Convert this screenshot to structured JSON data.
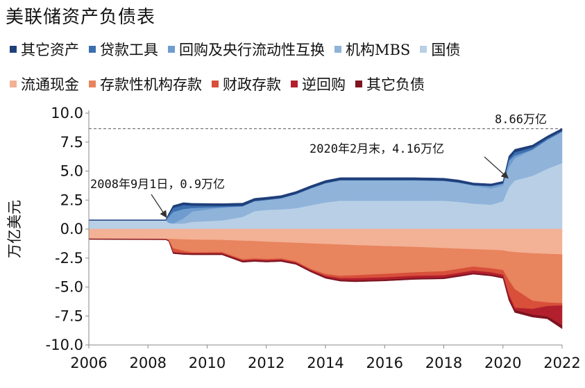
{
  "chart_data": {
    "type": "area",
    "title": "美联储资产负债表",
    "ylabel": "万亿美元",
    "xlabel": "",
    "ylim": [
      -10.0,
      10.0
    ],
    "xlim": [
      2006,
      2022
    ],
    "grid": false,
    "legend_position": "top",
    "x_ticks": [
      2006,
      2008,
      2010,
      2012,
      2014,
      2016,
      2018,
      2020,
      2022
    ],
    "y_ticks": [
      10.0,
      7.5,
      5.0,
      2.5,
      0.0,
      -2.5,
      -5.0,
      -7.5,
      -10.0
    ],
    "reference_line": {
      "y": 8.66,
      "label": "8.66万亿",
      "style": "dashed"
    },
    "annotations": [
      {
        "text": "2008年9月1日，0.9万亿",
        "x": 2008.67,
        "y": 0.9
      },
      {
        "text": "2020年2月末，4.16万亿",
        "x": 2020.17,
        "y": 4.16
      }
    ],
    "x": [
      2006,
      2008.6,
      2008.7,
      2008.85,
      2009.2,
      2009.5,
      2010.5,
      2011.2,
      2011.6,
      2012,
      2012.5,
      2013,
      2013.5,
      2014,
      2014.5,
      2015,
      2016,
      2017,
      2018,
      2018.5,
      2019,
      2019.6,
      2020.0,
      2020.2,
      2020.4,
      2021,
      2021.5,
      2022
    ],
    "assets": [
      {
        "name": "国债",
        "color": "#b8cfe6",
        "values": [
          0.75,
          0.75,
          0.55,
          0.48,
          0.48,
          0.62,
          0.75,
          1.05,
          1.55,
          1.65,
          1.7,
          1.8,
          2.05,
          2.3,
          2.45,
          2.45,
          2.45,
          2.45,
          2.45,
          2.35,
          2.2,
          2.1,
          2.4,
          3.6,
          4.2,
          4.6,
          5.2,
          5.7
        ]
      },
      {
        "name": "机构MBS",
        "color": "#8fb3d9",
        "values": [
          0.0,
          0.0,
          0.0,
          0.0,
          0.45,
          0.9,
          1.1,
          0.9,
          0.85,
          0.85,
          0.95,
          1.2,
          1.45,
          1.65,
          1.75,
          1.75,
          1.75,
          1.75,
          1.7,
          1.65,
          1.55,
          1.4,
          1.38,
          1.75,
          1.9,
          2.25,
          2.5,
          2.7
        ]
      },
      {
        "name": "回购及央行流动性互换",
        "color": "#6f9ccf",
        "values": [
          0.0,
          0.0,
          0.5,
          1.0,
          0.8,
          0.3,
          0.05,
          0.02,
          0.01,
          0.01,
          0.01,
          0.01,
          0.01,
          0.01,
          0.01,
          0.01,
          0.01,
          0.01,
          0.01,
          0.01,
          0.02,
          0.2,
          0.15,
          0.55,
          0.25,
          0.02,
          0.01,
          0.01
        ]
      },
      {
        "name": "贷款工具",
        "color": "#3c6fb0",
        "values": [
          0.0,
          0.0,
          0.15,
          0.35,
          0.35,
          0.2,
          0.1,
          0.05,
          0.04,
          0.04,
          0.03,
          0.03,
          0.03,
          0.03,
          0.03,
          0.03,
          0.03,
          0.03,
          0.03,
          0.03,
          0.03,
          0.03,
          0.03,
          0.15,
          0.28,
          0.18,
          0.12,
          0.08
        ]
      },
      {
        "name": "其它资产",
        "color": "#1f3f7a",
        "values": [
          0.05,
          0.05,
          0.15,
          0.2,
          0.2,
          0.2,
          0.2,
          0.22,
          0.2,
          0.2,
          0.2,
          0.2,
          0.2,
          0.2,
          0.2,
          0.2,
          0.2,
          0.2,
          0.2,
          0.2,
          0.18,
          0.17,
          0.16,
          0.25,
          0.25,
          0.2,
          0.2,
          0.2
        ]
      }
    ],
    "liabilities": [
      {
        "name": "流通现金",
        "color": "#f3b195",
        "values": [
          0.82,
          0.85,
          0.85,
          0.87,
          0.9,
          0.92,
          0.95,
          1.02,
          1.05,
          1.1,
          1.15,
          1.2,
          1.25,
          1.3,
          1.35,
          1.4,
          1.48,
          1.55,
          1.65,
          1.7,
          1.75,
          1.8,
          1.85,
          1.95,
          2.0,
          2.1,
          2.15,
          2.2
        ]
      },
      {
        "name": "存款性机构存款",
        "color": "#e8845e",
        "values": [
          0.02,
          0.02,
          0.1,
          0.8,
          1.0,
          1.1,
          1.05,
          1.6,
          1.5,
          1.5,
          1.4,
          1.6,
          2.2,
          2.6,
          2.7,
          2.6,
          2.4,
          2.2,
          2.0,
          1.75,
          1.5,
          1.6,
          1.7,
          2.5,
          3.2,
          4.1,
          4.2,
          4.2
        ]
      },
      {
        "name": "财政存款",
        "color": "#d8503a",
        "values": [
          0.01,
          0.01,
          0.05,
          0.35,
          0.2,
          0.1,
          0.1,
          0.1,
          0.1,
          0.1,
          0.1,
          0.1,
          0.1,
          0.15,
          0.2,
          0.25,
          0.3,
          0.3,
          0.35,
          0.35,
          0.35,
          0.35,
          0.4,
          1.2,
          1.6,
          0.7,
          0.3,
          0.2
        ]
      },
      {
        "name": "逆回购",
        "color": "#b3202d",
        "values": [
          0.0,
          0.0,
          0.0,
          0.0,
          0.0,
          0.0,
          0.02,
          0.05,
          0.05,
          0.05,
          0.05,
          0.05,
          0.05,
          0.1,
          0.15,
          0.2,
          0.2,
          0.2,
          0.2,
          0.2,
          0.2,
          0.2,
          0.2,
          0.3,
          0.2,
          0.5,
          0.9,
          1.7
        ]
      },
      {
        "name": "其它负债",
        "color": "#7d1420",
        "values": [
          0.05,
          0.05,
          0.05,
          0.1,
          0.1,
          0.1,
          0.1,
          0.1,
          0.1,
          0.1,
          0.1,
          0.1,
          0.1,
          0.1,
          0.1,
          0.1,
          0.1,
          0.1,
          0.1,
          0.1,
          0.1,
          0.1,
          0.1,
          0.2,
          0.2,
          0.2,
          0.2,
          0.3
        ]
      }
    ],
    "legend": {
      "row1": [
        {
          "label": "其它资产",
          "color": "#1f3f7a"
        },
        {
          "label": "贷款工具",
          "color": "#3c6fb0"
        },
        {
          "label": "回购及央行流动性互换",
          "color": "#6f9ccf"
        },
        {
          "label": "机构MBS",
          "color": "#8fb3d9"
        },
        {
          "label": "国债",
          "color": "#b8cfe6"
        }
      ],
      "row2": [
        {
          "label": "流通现金",
          "color": "#f3b195"
        },
        {
          "label": "存款性机构存款",
          "color": "#e8845e"
        },
        {
          "label": "财政存款",
          "color": "#d8503a"
        },
        {
          "label": "逆回购",
          "color": "#b3202d"
        },
        {
          "label": "其它负债",
          "color": "#7d1420"
        }
      ]
    }
  }
}
